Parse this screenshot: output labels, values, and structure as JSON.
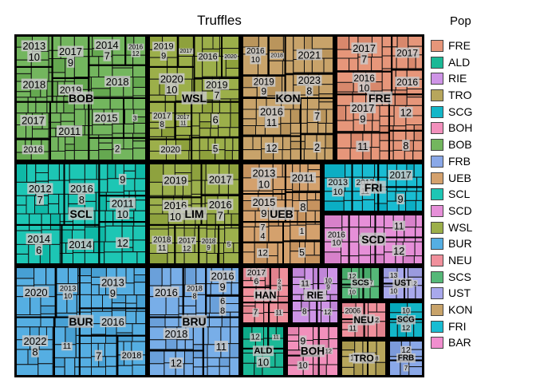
{
  "chart_data": {
    "type": "treemap",
    "title": "Truffles",
    "legend_title": "Pop",
    "legend_position": "right",
    "legend": [
      {
        "name": "FRE",
        "color": "#E6967A"
      },
      {
        "name": "ALD",
        "color": "#1BB896"
      },
      {
        "name": "RIE",
        "color": "#CE94E6"
      },
      {
        "name": "TRO",
        "color": "#B7A65C"
      },
      {
        "name": "SCG",
        "color": "#13B6C8"
      },
      {
        "name": "BOH",
        "color": "#F290BC"
      },
      {
        "name": "BOB",
        "color": "#73B65E"
      },
      {
        "name": "FRB",
        "color": "#8AA8E8"
      },
      {
        "name": "UEB",
        "color": "#D4A16D"
      },
      {
        "name": "SCL",
        "color": "#1DC6B4"
      },
      {
        "name": "SCD",
        "color": "#E68FD8"
      },
      {
        "name": "WSL",
        "color": "#9CAF4A"
      },
      {
        "name": "BUR",
        "color": "#55AEE2"
      },
      {
        "name": "NEU",
        "color": "#F0909C"
      },
      {
        "name": "SCS",
        "color": "#55B878"
      },
      {
        "name": "UST",
        "color": "#A8A8EC"
      },
      {
        "name": "KON",
        "color": "#C8A36A"
      },
      {
        "name": "FRI",
        "color": "#19BCD2"
      },
      {
        "name": "BAR",
        "color": "#F08ECE"
      }
    ],
    "groups": [
      {
        "name": "BOB",
        "color": "#73B65E",
        "cells": [
          [
            "2013",
            "10"
          ],
          [
            "2018",
            ""
          ],
          [
            "2017",
            "9"
          ],
          [
            "2019",
            ""
          ],
          [
            "2017",
            ""
          ],
          [
            "2016",
            ""
          ],
          [
            "2011",
            ""
          ],
          [
            "2014",
            "7"
          ],
          [
            "2016",
            "12"
          ],
          [
            "2018",
            ""
          ],
          [
            "2015",
            ""
          ],
          [
            "3",
            ""
          ],
          [
            "2",
            ""
          ]
        ]
      },
      {
        "name": "WSL",
        "color": "#9CAF4A",
        "cells": [
          [
            "2019",
            "9"
          ],
          [
            "2017",
            ""
          ],
          [
            "2020",
            "10"
          ],
          [
            "2016",
            ""
          ],
          [
            "2020",
            ""
          ],
          [
            "2019",
            "7"
          ],
          [
            "2017",
            "8"
          ],
          [
            "2017",
            "11"
          ],
          [
            "2020",
            ""
          ],
          [
            "6",
            ""
          ],
          [
            "5",
            ""
          ]
        ]
      },
      {
        "name": "KON",
        "color": "#C8A36A",
        "cells": [
          [
            "2016",
            "10"
          ],
          [
            "2018",
            ""
          ],
          [
            "2019",
            "9"
          ],
          [
            "2021",
            ""
          ],
          [
            "2023",
            "8"
          ],
          [
            "2016",
            "11"
          ],
          [
            "12",
            ""
          ],
          [
            "7",
            ""
          ],
          [
            "2",
            ""
          ]
        ]
      },
      {
        "name": "FRE",
        "color": "#E6967A",
        "cells": [
          [
            "2017",
            "7"
          ],
          [
            "2016",
            "10"
          ],
          [
            "2017",
            ""
          ],
          [
            "2016",
            ""
          ],
          [
            "2017",
            "9"
          ],
          [
            "11",
            ""
          ],
          [
            "12",
            ""
          ],
          [
            "8",
            ""
          ]
        ]
      },
      {
        "name": "SCL",
        "color": "#1DC6B4",
        "cells": [
          [
            "2012",
            "7"
          ],
          [
            "2016",
            "8"
          ],
          [
            "2014",
            "6"
          ],
          [
            "2014",
            ""
          ],
          [
            "9",
            ""
          ],
          [
            "2011",
            "10"
          ],
          [
            "12",
            ""
          ]
        ]
      },
      {
        "name": "LIM",
        "color": "#9CB04C",
        "cells": [
          [
            "2019",
            ""
          ],
          [
            "2016",
            "10"
          ],
          [
            "2017",
            ""
          ],
          [
            "2016",
            "7"
          ],
          [
            "2018",
            "11"
          ],
          [
            "2017",
            "12"
          ],
          [
            "2018",
            "9"
          ],
          [
            "5",
            ""
          ]
        ]
      },
      {
        "name": "UEB",
        "color": "#D4A16D",
        "cells": [
          [
            "2013",
            "10"
          ],
          [
            "2015",
            "9"
          ],
          [
            "2011",
            ""
          ],
          [
            "8",
            ""
          ],
          [
            "7",
            "4"
          ],
          [
            "12",
            ""
          ],
          [
            "1",
            ""
          ],
          [
            "5",
            ""
          ]
        ]
      },
      {
        "name": "FRI",
        "color": "#19BCD2",
        "cells": [
          [
            "2013",
            "10"
          ],
          [
            "2017",
            "11"
          ],
          [
            "2017",
            ""
          ],
          [
            "9",
            ""
          ]
        ]
      },
      {
        "name": "SCD",
        "color": "#E68FD8",
        "cells": [
          [
            "2016",
            "10"
          ],
          [
            "7",
            ""
          ],
          [
            "11",
            ""
          ],
          [
            "12",
            ""
          ]
        ]
      },
      {
        "name": "BUR",
        "color": "#55AEE2",
        "cells": [
          [
            "2020",
            ""
          ],
          [
            "2013",
            "10"
          ],
          [
            "2022",
            "8"
          ],
          [
            "11",
            ""
          ],
          [
            "2013",
            "9"
          ],
          [
            "2016",
            ""
          ],
          [
            "7",
            ""
          ],
          [
            "2018",
            ""
          ]
        ]
      },
      {
        "name": "BRU",
        "color": "#78AEE8",
        "cells": [
          [
            "2016",
            ""
          ],
          [
            "2018",
            "8"
          ],
          [
            "2016",
            "9"
          ],
          [
            "6",
            "8"
          ],
          [
            "2018",
            ""
          ],
          [
            "12",
            ""
          ],
          [
            "11",
            ""
          ]
        ]
      },
      {
        "name": "HAN",
        "color": "#F0909C",
        "cells": [
          [
            "2017",
            "6"
          ],
          [
            "8",
            ""
          ],
          [
            "2",
            "3"
          ],
          [
            "7",
            ""
          ],
          [
            "11",
            ""
          ]
        ]
      },
      {
        "name": "RIE",
        "color": "#CE94E6",
        "cells": [
          [
            "11",
            ""
          ],
          [
            "10",
            "9"
          ],
          [
            "8",
            ""
          ],
          [
            "12",
            ""
          ]
        ]
      },
      {
        "name": "SCS",
        "color": "#55B878",
        "cells": [
          [
            "12",
            ""
          ],
          [
            "10",
            ""
          ],
          [
            "7",
            ""
          ]
        ]
      },
      {
        "name": "UST",
        "color": "#A8A8EC",
        "cells": [
          [
            "13",
            ""
          ],
          [
            "10",
            ""
          ],
          [
            "12",
            ""
          ]
        ]
      },
      {
        "name": "NEU",
        "color": "#F0909C",
        "cells": [
          [
            "2006",
            ""
          ],
          [
            "11",
            ""
          ],
          [
            "12",
            ""
          ]
        ]
      },
      {
        "name": "SCG",
        "color": "#13B6C8",
        "cells": [
          [
            "10",
            ""
          ],
          [
            "12",
            ""
          ]
        ]
      },
      {
        "name": "ALD",
        "color": "#1BB896",
        "cells": [
          [
            "12",
            ""
          ],
          [
            "11",
            ""
          ],
          [
            "10",
            ""
          ]
        ]
      },
      {
        "name": "BOH",
        "color": "#F290BC",
        "cells": [
          [
            "9",
            ""
          ],
          [
            "10",
            ""
          ],
          [
            "12",
            ""
          ]
        ]
      },
      {
        "name": "TRO",
        "color": "#B7A65C",
        "cells": [
          [
            "11",
            ""
          ],
          [
            "8",
            ""
          ]
        ]
      },
      {
        "name": "FRB",
        "color": "#8AA8E8",
        "cells": [
          [
            "12",
            ""
          ],
          [
            "7",
            ""
          ]
        ]
      }
    ]
  }
}
